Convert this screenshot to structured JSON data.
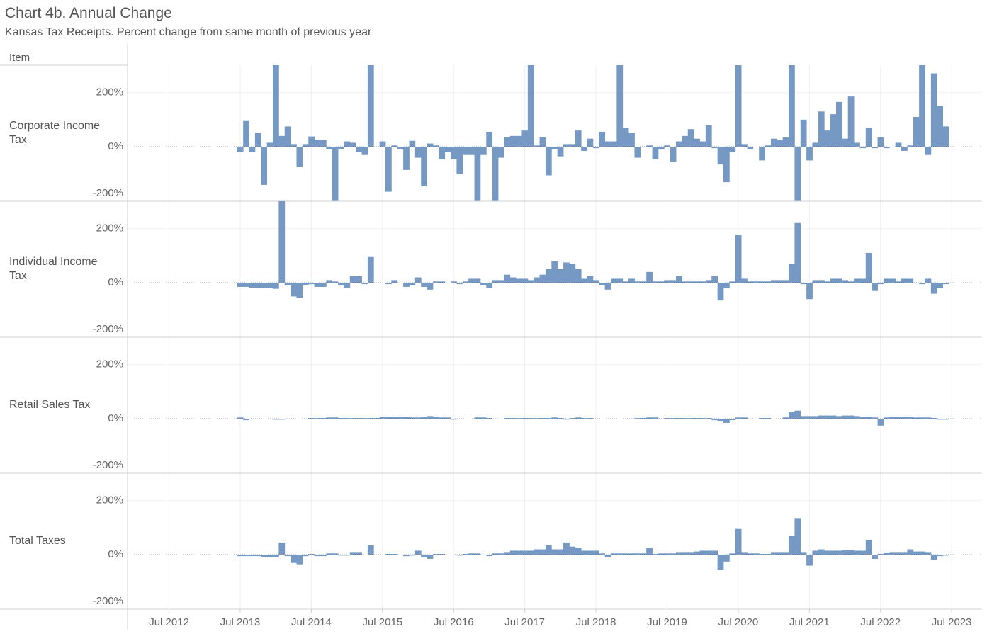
{
  "title": "Chart 4b. Annual Change",
  "subtitle": "Kansas Tax Receipts. Percent change from same month of previous year",
  "row_header": "Item",
  "chart_data": {
    "type": "bar",
    "grid": true,
    "xlim": [
      "2011-12",
      "2023-12"
    ],
    "xticks": [
      {
        "value": "2012-07",
        "label": "Jul 2012"
      },
      {
        "value": "2013-07",
        "label": "Jul 2013"
      },
      {
        "value": "2014-07",
        "label": "Jul 2014"
      },
      {
        "value": "2015-07",
        "label": "Jul 2015"
      },
      {
        "value": "2016-07",
        "label": "Jul 2016"
      },
      {
        "value": "2017-07",
        "label": "Jul 2017"
      },
      {
        "value": "2018-07",
        "label": "Jul 2018"
      },
      {
        "value": "2019-07",
        "label": "Jul 2019"
      },
      {
        "value": "2020-07",
        "label": "Jul 2020"
      },
      {
        "value": "2021-07",
        "label": "Jul 2021"
      },
      {
        "value": "2022-07",
        "label": "Jul 2022"
      },
      {
        "value": "2023-07",
        "label": "Jul 2023"
      }
    ],
    "ylim": [
      -200,
      300
    ],
    "yticks": [
      {
        "value": -200,
        "label": "-200%"
      },
      {
        "value": 0,
        "label": "0%"
      },
      {
        "value": 200,
        "label": "200%"
      }
    ],
    "x": [
      "2013-07",
      "2013-08",
      "2013-09",
      "2013-10",
      "2013-11",
      "2013-12",
      "2014-01",
      "2014-02",
      "2014-03",
      "2014-04",
      "2014-05",
      "2014-06",
      "2014-07",
      "2014-08",
      "2014-09",
      "2014-10",
      "2014-11",
      "2014-12",
      "2015-01",
      "2015-02",
      "2015-03",
      "2015-04",
      "2015-05",
      "2015-06",
      "2015-07",
      "2015-08",
      "2015-09",
      "2015-10",
      "2015-11",
      "2015-12",
      "2016-01",
      "2016-02",
      "2016-03",
      "2016-04",
      "2016-05",
      "2016-06",
      "2016-07",
      "2016-08",
      "2016-09",
      "2016-10",
      "2016-11",
      "2016-12",
      "2017-01",
      "2017-02",
      "2017-03",
      "2017-04",
      "2017-05",
      "2017-06",
      "2017-07",
      "2017-08",
      "2017-09",
      "2017-10",
      "2017-11",
      "2017-12",
      "2018-01",
      "2018-02",
      "2018-03",
      "2018-04",
      "2018-05",
      "2018-06",
      "2018-07",
      "2018-08",
      "2018-09",
      "2018-10",
      "2018-11",
      "2018-12",
      "2019-01",
      "2019-02",
      "2019-03",
      "2019-04",
      "2019-05",
      "2019-06",
      "2019-07",
      "2019-08",
      "2019-09",
      "2019-10",
      "2019-11",
      "2019-12",
      "2020-01",
      "2020-02",
      "2020-03",
      "2020-04",
      "2020-05",
      "2020-06",
      "2020-07",
      "2020-08",
      "2020-09",
      "2020-10",
      "2020-11",
      "2020-12",
      "2021-01",
      "2021-02",
      "2021-03",
      "2021-04",
      "2021-05",
      "2021-06",
      "2021-07",
      "2021-08",
      "2021-09",
      "2021-10",
      "2021-11",
      "2021-12",
      "2022-01",
      "2022-02",
      "2022-03",
      "2022-04",
      "2022-05",
      "2022-06",
      "2022-07",
      "2022-08",
      "2022-09",
      "2022-10",
      "2022-11",
      "2022-12",
      "2023-01",
      "2023-02",
      "2023-03",
      "2023-04",
      "2023-05",
      "2023-06"
    ],
    "series": [
      {
        "name": "Corporate Income Tax",
        "color": "#7599c3",
        "values": [
          -20,
          95,
          -20,
          50,
          -140,
          15,
          300,
          40,
          75,
          10,
          -75,
          10,
          38,
          25,
          25,
          -10,
          -200,
          -10,
          20,
          15,
          -20,
          -30,
          300,
          0,
          20,
          -165,
          5,
          -10,
          -85,
          22,
          -40,
          -145,
          12,
          5,
          -45,
          -20,
          -45,
          -100,
          -30,
          -30,
          -200,
          -30,
          55,
          -200,
          -40,
          35,
          40,
          40,
          60,
          300,
          5,
          35,
          -105,
          -10,
          -35,
          10,
          10,
          60,
          -15,
          30,
          -5,
          55,
          20,
          20,
          300,
          70,
          50,
          -40,
          0,
          5,
          -45,
          -10,
          5,
          -55,
          20,
          40,
          65,
          30,
          20,
          80,
          -5,
          -65,
          -130,
          -20,
          300,
          10,
          -10,
          0,
          -50,
          5,
          30,
          25,
          35,
          300,
          -200,
          100,
          -50,
          15,
          130,
          60,
          120,
          165,
          30,
          185,
          15,
          -5,
          70,
          -5,
          35,
          -5,
          0,
          15,
          -15,
          5,
          110,
          300,
          -30,
          270,
          150,
          75
        ]
      },
      {
        "name": "Individual Income Tax",
        "color": "#7599c3",
        "values": [
          -15,
          -15,
          -18,
          -18,
          -20,
          -20,
          -22,
          300,
          -10,
          -50,
          -55,
          -10,
          -5,
          -15,
          -15,
          10,
          5,
          -10,
          -20,
          25,
          25,
          -5,
          95,
          0,
          0,
          -5,
          10,
          0,
          -15,
          -10,
          20,
          -15,
          -25,
          5,
          5,
          0,
          5,
          -5,
          5,
          15,
          15,
          -10,
          -20,
          10,
          10,
          30,
          20,
          15,
          15,
          10,
          20,
          30,
          50,
          80,
          50,
          75,
          70,
          50,
          15,
          25,
          10,
          -10,
          -25,
          15,
          15,
          5,
          15,
          5,
          5,
          40,
          5,
          5,
          10,
          10,
          25,
          5,
          5,
          5,
          5,
          10,
          25,
          -65,
          -20,
          5,
          175,
          15,
          5,
          5,
          5,
          5,
          10,
          10,
          10,
          70,
          220,
          -5,
          -60,
          10,
          10,
          5,
          15,
          15,
          10,
          5,
          15,
          15,
          110,
          -30,
          -5,
          15,
          15,
          5,
          15,
          15,
          0,
          -5,
          15,
          -40,
          -20,
          -5
        ]
      },
      {
        "name": "Retail Sales Tax",
        "color": "#7599c3",
        "values": [
          5,
          -5,
          0,
          0,
          0,
          0,
          -3,
          -3,
          -2,
          0,
          0,
          0,
          3,
          3,
          3,
          5,
          5,
          3,
          3,
          3,
          3,
          3,
          3,
          3,
          8,
          8,
          8,
          8,
          8,
          5,
          5,
          8,
          10,
          8,
          5,
          5,
          -3,
          0,
          0,
          0,
          5,
          5,
          3,
          0,
          0,
          3,
          3,
          3,
          3,
          3,
          3,
          3,
          3,
          5,
          3,
          -3,
          3,
          5,
          3,
          3,
          0,
          0,
          0,
          0,
          0,
          0,
          0,
          3,
          3,
          5,
          5,
          0,
          3,
          3,
          3,
          3,
          3,
          3,
          3,
          3,
          -5,
          -10,
          -15,
          -5,
          5,
          5,
          0,
          0,
          3,
          3,
          0,
          0,
          5,
          25,
          30,
          10,
          10,
          10,
          12,
          12,
          12,
          10,
          12,
          12,
          10,
          8,
          8,
          5,
          -25,
          5,
          8,
          8,
          8,
          8,
          5,
          5,
          5,
          3,
          -3,
          -3
        ]
      },
      {
        "name": "Total Taxes",
        "color": "#7599c3",
        "values": [
          -5,
          -5,
          -5,
          -5,
          -10,
          -10,
          -10,
          45,
          -5,
          -30,
          -35,
          -5,
          3,
          -5,
          -5,
          5,
          5,
          -3,
          -3,
          10,
          10,
          0,
          35,
          0,
          0,
          3,
          3,
          0,
          -5,
          -3,
          15,
          -10,
          -15,
          3,
          3,
          0,
          0,
          -3,
          3,
          5,
          5,
          0,
          -5,
          5,
          5,
          10,
          15,
          15,
          15,
          15,
          20,
          20,
          35,
          20,
          20,
          45,
          30,
          25,
          15,
          15,
          15,
          5,
          -10,
          5,
          5,
          5,
          5,
          5,
          5,
          25,
          3,
          5,
          5,
          5,
          10,
          10,
          10,
          12,
          15,
          15,
          15,
          -55,
          -25,
          5,
          95,
          10,
          5,
          5,
          3,
          3,
          10,
          10,
          10,
          70,
          135,
          10,
          -40,
          15,
          20,
          15,
          15,
          15,
          18,
          18,
          15,
          15,
          55,
          -15,
          3,
          8,
          10,
          10,
          10,
          20,
          12,
          12,
          10,
          -18,
          -5,
          -3
        ]
      }
    ]
  }
}
